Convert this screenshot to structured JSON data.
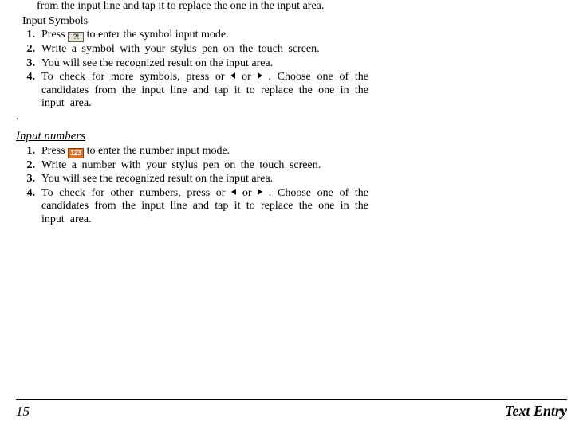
{
  "intro_tail": "from the input line and tap it to replace the one in the input area.",
  "section_symbols": {
    "heading": "Input Symbols",
    "steps": [
      {
        "pre": " Press ",
        "icon": "?!",
        "post": " to enter the symbol input mode."
      },
      {
        "text": "Write a symbol with your stylus pen on the touch screen."
      },
      {
        "text": "You will see the recognized result on the input area."
      },
      {
        "pre": "To check for more symbols, press  or ",
        "mid": " or ",
        "post": ". Choose one of the candidates from the input line and tap it to replace the one in the input area."
      }
    ]
  },
  "section_numbers": {
    "heading": "Input numbers",
    "steps": [
      {
        "pre": " Press ",
        "icon": "123",
        "post": " to enter the number input mode."
      },
      {
        "text": "Write a number with your stylus pen on the touch screen."
      },
      {
        "text": "You will see the recognized result on the input area."
      },
      {
        "pre": "To check for other numbers, press  or ",
        "mid": " or ",
        "post": ". Choose one of the candidates from the input line and tap it to replace the one in the input area."
      }
    ]
  },
  "footer": {
    "page_number": "15",
    "title": "Text Entry"
  },
  "colors": {
    "icon_num_bg": "#e07028",
    "icon_num_fg": "#ffffff"
  }
}
